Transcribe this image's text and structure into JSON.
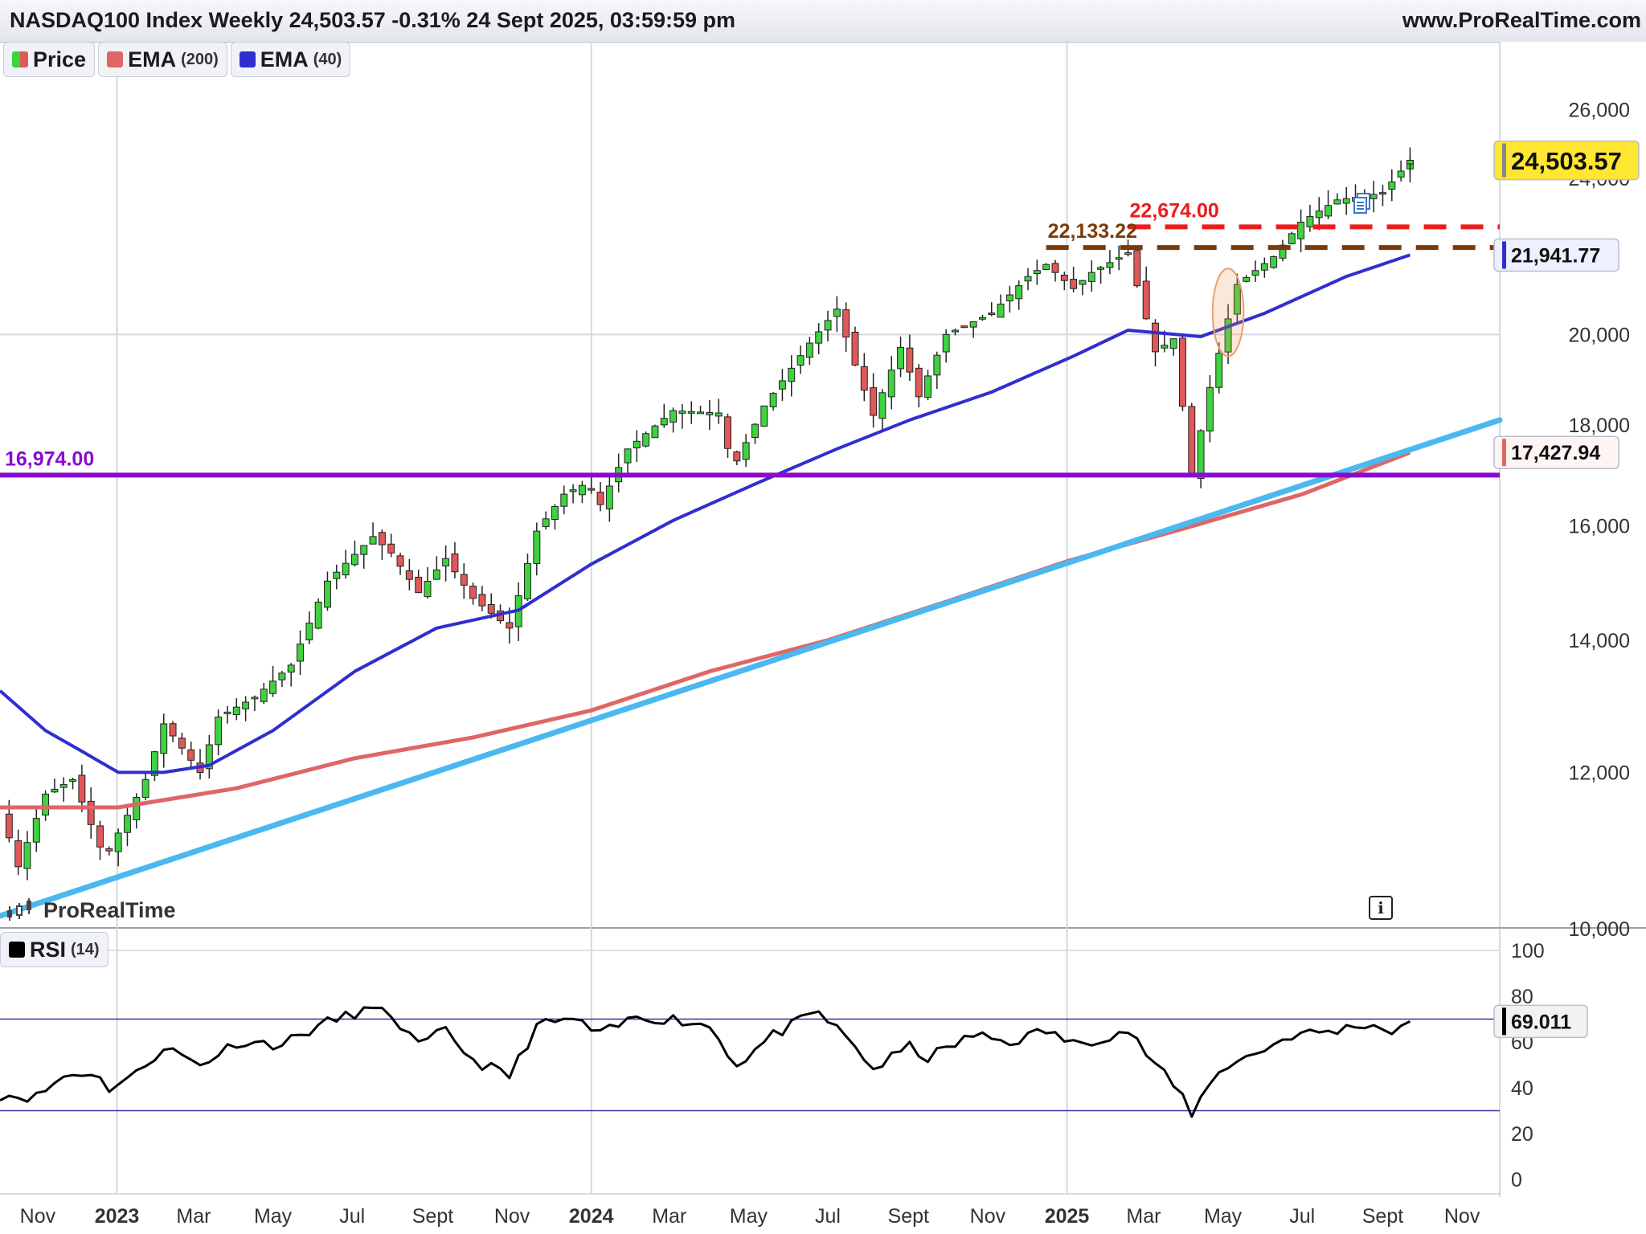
{
  "header": {
    "title": "NASDAQ100 Index Weekly 24,503.57 -0.31% 24 Sept 2025, 03:59:59 pm",
    "site": "www.ProRealTime.com"
  },
  "legend": {
    "price": "Price",
    "ema200_label": "EMA",
    "ema200_period": "(200)",
    "ema40_label": "EMA",
    "ema40_period": "(40)",
    "rsi_label": "RSI",
    "rsi_period": "(14)"
  },
  "watermark": "ProRealTime",
  "icons": {
    "info": "i",
    "info_name": "info-icon",
    "notes_name": "notes-icon"
  },
  "colors": {
    "up": "#3fd23f",
    "down": "#e05858",
    "ema200": "#e06666",
    "ema40": "#2f2fcf",
    "trendline": "#4bb8ef",
    "support": "#8a0ad0",
    "resistance_red": "#ea1c1c",
    "resistance_brown": "#7a3a0a",
    "rsi": "#000000",
    "badge_last": "#ffe633"
  },
  "chart_data": [
    {
      "type": "candlestick",
      "scale": "log",
      "ylim": [
        10000,
        26600
      ],
      "x_range": [
        "2022-10-03",
        "2025-11-30"
      ],
      "yticks": [
        10000,
        12000,
        14000,
        16000,
        18000,
        20000,
        24000,
        26000
      ],
      "ytick_labels": [
        "10,000",
        "12,000",
        "14,000",
        "16,000",
        "18,000",
        "20,000",
        "24,000",
        "26,000"
      ],
      "xticks": [
        {
          "date": "2022-11-01",
          "label": "Nov",
          "bold": false
        },
        {
          "date": "2023-01-01",
          "label": "2023",
          "bold": true
        },
        {
          "date": "2023-03-01",
          "label": "Mar",
          "bold": false
        },
        {
          "date": "2023-05-01",
          "label": "May",
          "bold": false
        },
        {
          "date": "2023-07-01",
          "label": "Jul",
          "bold": false
        },
        {
          "date": "2023-09-01",
          "label": "Sept",
          "bold": false
        },
        {
          "date": "2023-11-01",
          "label": "Nov",
          "bold": false
        },
        {
          "date": "2024-01-01",
          "label": "2024",
          "bold": true
        },
        {
          "date": "2024-03-01",
          "label": "Mar",
          "bold": false
        },
        {
          "date": "2024-05-01",
          "label": "May",
          "bold": false
        },
        {
          "date": "2024-07-01",
          "label": "Jul",
          "bold": false
        },
        {
          "date": "2024-09-01",
          "label": "Sept",
          "bold": false
        },
        {
          "date": "2024-11-01",
          "label": "Nov",
          "bold": false
        },
        {
          "date": "2025-01-01",
          "label": "2025",
          "bold": true
        },
        {
          "date": "2025-03-01",
          "label": "Mar",
          "bold": false
        },
        {
          "date": "2025-05-01",
          "label": "May",
          "bold": false
        },
        {
          "date": "2025-07-01",
          "label": "Jul",
          "bold": false
        },
        {
          "date": "2025-09-01",
          "label": "Sept",
          "bold": false
        },
        {
          "date": "2025-11-01",
          "label": "Nov",
          "bold": false
        }
      ],
      "price_path": [
        [
          "2022-10-03",
          11500
        ],
        [
          "2022-10-17",
          10750
        ],
        [
          "2022-11-07",
          11700
        ],
        [
          "2022-11-28",
          11900
        ],
        [
          "2022-12-19",
          11000
        ],
        [
          "2022-12-26",
          10950
        ],
        [
          "2023-01-23",
          11900
        ],
        [
          "2023-02-06",
          12700
        ],
        [
          "2023-03-06",
          12000
        ],
        [
          "2023-03-20",
          12800
        ],
        [
          "2023-04-17",
          13100
        ],
        [
          "2023-05-15",
          13600
        ],
        [
          "2023-06-12",
          15000
        ],
        [
          "2023-07-17",
          15800
        ],
        [
          "2023-07-31",
          15500
        ],
        [
          "2023-08-21",
          14800
        ],
        [
          "2023-09-11",
          15400
        ],
        [
          "2023-10-02",
          14700
        ],
        [
          "2023-10-30",
          14200
        ],
        [
          "2023-11-20",
          15900
        ],
        [
          "2023-12-11",
          16600
        ],
        [
          "2023-12-29",
          16820
        ],
        [
          "2024-01-08",
          16400
        ],
        [
          "2024-01-29",
          17500
        ],
        [
          "2024-03-04",
          18300
        ],
        [
          "2024-04-08",
          18250
        ],
        [
          "2024-04-19",
          17100
        ],
        [
          "2024-05-13",
          18400
        ],
        [
          "2024-06-17",
          19800
        ],
        [
          "2024-07-08",
          20600
        ],
        [
          "2024-07-22",
          19300
        ],
        [
          "2024-08-05",
          18200
        ],
        [
          "2024-08-26",
          19700
        ],
        [
          "2024-09-09",
          18600
        ],
        [
          "2024-09-30",
          20000
        ],
        [
          "2024-11-04",
          20500
        ],
        [
          "2024-12-02",
          21400
        ],
        [
          "2024-12-16",
          21700
        ],
        [
          "2025-01-06",
          21100
        ],
        [
          "2025-01-20",
          21500
        ],
        [
          "2025-02-17",
          22000
        ],
        [
          "2025-03-10",
          19600
        ],
        [
          "2025-03-24",
          19900
        ],
        [
          "2025-04-07",
          17000
        ],
        [
          "2025-04-21",
          18800
        ],
        [
          "2025-05-12",
          21200
        ],
        [
          "2025-06-09",
          21900
        ],
        [
          "2025-06-30",
          22800
        ],
        [
          "2025-07-28",
          23400
        ],
        [
          "2025-08-18",
          23500
        ],
        [
          "2025-09-01",
          23600
        ],
        [
          "2025-09-22",
          24503.57
        ]
      ],
      "ema200": [
        [
          "2022-10-03",
          11520
        ],
        [
          "2023-01-02",
          11520
        ],
        [
          "2023-04-03",
          11780
        ],
        [
          "2023-07-03",
          12200
        ],
        [
          "2023-10-02",
          12500
        ],
        [
          "2024-01-01",
          12900
        ],
        [
          "2024-04-01",
          13500
        ],
        [
          "2024-07-01",
          14000
        ],
        [
          "2024-10-01",
          14650
        ],
        [
          "2025-01-01",
          15350
        ],
        [
          "2025-04-01",
          15950
        ],
        [
          "2025-07-01",
          16600
        ],
        [
          "2025-09-22",
          17427.94
        ]
      ],
      "ema40": [
        [
          "2022-10-03",
          13200
        ],
        [
          "2022-11-07",
          12600
        ],
        [
          "2022-12-05",
          12300
        ],
        [
          "2023-01-02",
          12000
        ],
        [
          "2023-02-06",
          12000
        ],
        [
          "2023-03-13",
          12100
        ],
        [
          "2023-05-01",
          12600
        ],
        [
          "2023-07-03",
          13500
        ],
        [
          "2023-09-04",
          14200
        ],
        [
          "2023-11-06",
          14500
        ],
        [
          "2024-01-01",
          15300
        ],
        [
          "2024-03-04",
          16100
        ],
        [
          "2024-05-06",
          16800
        ],
        [
          "2024-07-08",
          17500
        ],
        [
          "2024-09-02",
          18100
        ],
        [
          "2024-11-04",
          18700
        ],
        [
          "2025-01-06",
          19500
        ],
        [
          "2025-02-17",
          20100
        ],
        [
          "2025-04-14",
          19950
        ],
        [
          "2025-06-02",
          20500
        ],
        [
          "2025-08-04",
          21400
        ],
        [
          "2025-09-22",
          21941.77
        ]
      ],
      "trendline": [
        [
          "2022-10-03",
          10150
        ],
        [
          "2025-11-30",
          18100
        ]
      ],
      "levels": [
        {
          "name": "support-16974",
          "value": 16974,
          "label": "16,974.00",
          "from": "2022-10-03",
          "style": "solid"
        },
        {
          "name": "resistance-22674",
          "value": 22674,
          "label": "22,674.00",
          "from": "2025-02-17",
          "style": "dashed"
        },
        {
          "name": "resistance-22133",
          "value": 22133.22,
          "label": "22,133.22",
          "from": "2024-12-16",
          "style": "dashed"
        }
      ],
      "badges": [
        {
          "name": "last-price-badge",
          "value": 24503.57,
          "label": "24,503.57",
          "kind": "last"
        },
        {
          "name": "ema40-badge",
          "value": 21941.77,
          "label": "21,941.77",
          "kind": "ema40"
        },
        {
          "name": "ema200-badge",
          "value": 17427.94,
          "label": "17,427.94",
          "kind": "ema200"
        }
      ],
      "highlight": {
        "name": "breakout-ellipse",
        "from": "2025-04-28",
        "to": "2025-05-12",
        "low": 19500,
        "high": 21600
      }
    },
    {
      "type": "line",
      "title": "RSI",
      "ylim": [
        0,
        100
      ],
      "yticks": [
        0,
        20,
        40,
        60,
        80,
        100
      ],
      "ytick_labels": [
        "0",
        "20",
        "40",
        "60",
        "80",
        "100"
      ],
      "levels": [
        70,
        30
      ],
      "last_label": "69.011",
      "last_value": 69.011,
      "path": [
        [
          "2022-10-03",
          37
        ],
        [
          "2022-10-31",
          36
        ],
        [
          "2022-11-21",
          45
        ],
        [
          "2022-12-12",
          47
        ],
        [
          "2022-12-26",
          40
        ],
        [
          "2023-01-16",
          46
        ],
        [
          "2023-02-06",
          58
        ],
        [
          "2023-03-06",
          50
        ],
        [
          "2023-04-03",
          60
        ],
        [
          "2023-05-08",
          59
        ],
        [
          "2023-06-05",
          67
        ],
        [
          "2023-07-10",
          74
        ],
        [
          "2023-07-31",
          72
        ],
        [
          "2023-08-21",
          58
        ],
        [
          "2023-09-11",
          65
        ],
        [
          "2023-10-02",
          52
        ],
        [
          "2023-10-30",
          45
        ],
        [
          "2023-11-20",
          67
        ],
        [
          "2023-12-18",
          70
        ],
        [
          "2024-01-08",
          63
        ],
        [
          "2024-02-05",
          71
        ],
        [
          "2024-03-04",
          70
        ],
        [
          "2024-04-01",
          67
        ],
        [
          "2024-04-22",
          50
        ],
        [
          "2024-05-20",
          63
        ],
        [
          "2024-06-24",
          73
        ],
        [
          "2024-07-22",
          58
        ],
        [
          "2024-08-05",
          48
        ],
        [
          "2024-09-02",
          58
        ],
        [
          "2024-09-16",
          53
        ],
        [
          "2024-10-21",
          63
        ],
        [
          "2024-11-18",
          60
        ],
        [
          "2024-12-16",
          65
        ],
        [
          "2025-01-06",
          59
        ],
        [
          "2025-02-17",
          65
        ],
        [
          "2025-03-10",
          50
        ],
        [
          "2025-03-31",
          36
        ],
        [
          "2025-04-07",
          29
        ],
        [
          "2025-04-28",
          48
        ],
        [
          "2025-05-26",
          55
        ],
        [
          "2025-06-23",
          63
        ],
        [
          "2025-07-28",
          65
        ],
        [
          "2025-08-18",
          68
        ],
        [
          "2025-09-08",
          65
        ],
        [
          "2025-09-22",
          69.011
        ]
      ]
    }
  ]
}
